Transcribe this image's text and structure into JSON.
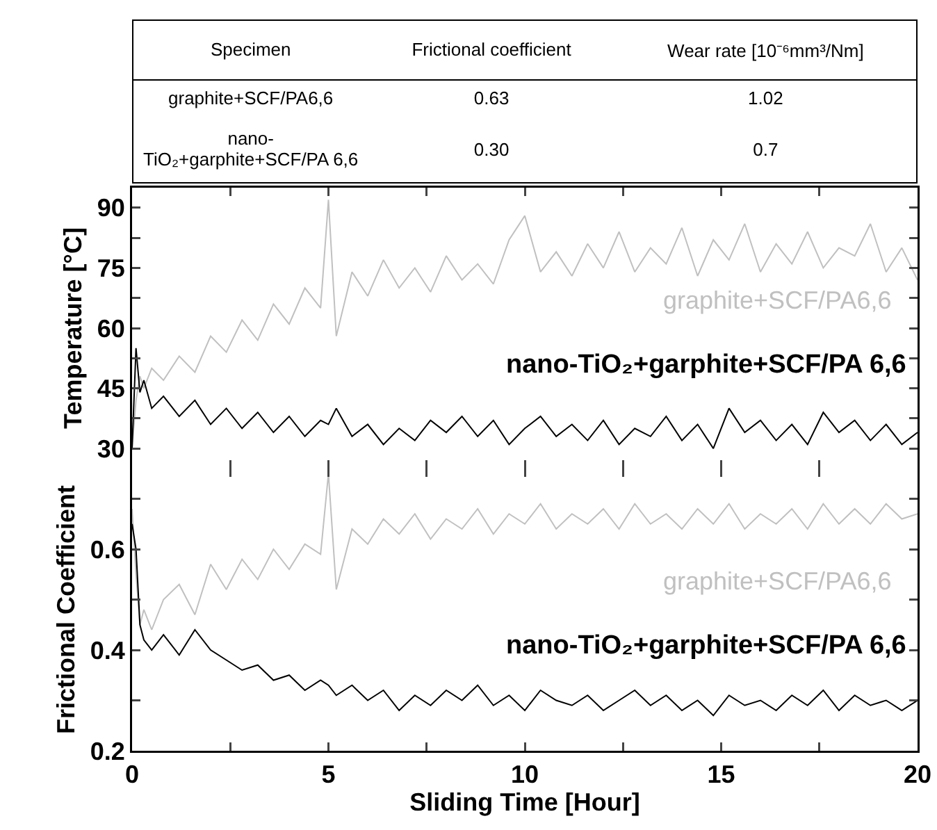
{
  "chart_data": [
    {
      "type": "other",
      "annotations": [
        "Specimen",
        "Frictional coefficient",
        "Wear rate [10⁻⁶mm³/Nm]",
        "graphite+SCF/PA6,6",
        "0.63",
        "1.02",
        "nano-TiO₂+garphite+SCF/PA 6,6",
        "0.30",
        "0.7"
      ]
    },
    {
      "type": "line",
      "ylabel": "Temperature [°C]",
      "legend": false,
      "tick_labels": "y",
      "xlim": [
        0,
        20
      ],
      "xticks": [
        {
          "value": 0,
          "label": null
        },
        {
          "value": 2.5,
          "label": null
        },
        {
          "value": 5,
          "label": null
        },
        {
          "value": 7.5,
          "label": null
        },
        {
          "value": 10,
          "label": null
        },
        {
          "value": 12.5,
          "label": null
        },
        {
          "value": 15,
          "label": null
        },
        {
          "value": 17.5,
          "label": null
        },
        {
          "value": 20,
          "label": null
        }
      ],
      "ylim": [
        25,
        95
      ],
      "yticks": [
        30,
        {
          "value": 37.5,
          "label": null
        },
        45,
        {
          "value": 52.5,
          "label": null
        },
        60,
        {
          "value": 67.5,
          "label": null
        },
        75,
        {
          "value": 82.5,
          "label": null
        },
        90
      ],
      "x": [
        0,
        0.1,
        0.2,
        0.3,
        0.5,
        0.8,
        1.2,
        1.6,
        2,
        2.4,
        2.8,
        3.2,
        3.6,
        4,
        4.4,
        4.8,
        5,
        5.2,
        5.6,
        6,
        6.4,
        6.8,
        7.2,
        7.6,
        8,
        8.4,
        8.8,
        9.2,
        9.6,
        10,
        10.4,
        10.8,
        11.2,
        11.6,
        12,
        12.4,
        12.8,
        13.2,
        13.6,
        14,
        14.4,
        14.8,
        15.2,
        15.6,
        16,
        16.4,
        16.8,
        17.2,
        17.6,
        18,
        18.4,
        18.8,
        19.2,
        19.6,
        20
      ],
      "series": [
        {
          "name": "graphite+SCF/PA6,6",
          "color": "#c0c0c0",
          "values": [
            30,
            42,
            48,
            45,
            50,
            47,
            53,
            49,
            58,
            54,
            62,
            57,
            66,
            61,
            70,
            65,
            92,
            58,
            74,
            68,
            77,
            70,
            75,
            69,
            78,
            72,
            76,
            71,
            82,
            88,
            74,
            79,
            73,
            81,
            75,
            84,
            74,
            80,
            76,
            85,
            73,
            82,
            77,
            86,
            74,
            81,
            76,
            84,
            75,
            80,
            78,
            86,
            74,
            80,
            72
          ]
        },
        {
          "name": "nano-TiO₂+garphite+SCF/PA 6,6",
          "color": "#000000",
          "values": [
            30,
            55,
            44,
            47,
            40,
            43,
            38,
            42,
            36,
            40,
            35,
            39,
            34,
            38,
            33,
            37,
            36,
            40,
            33,
            36,
            31,
            35,
            32,
            37,
            34,
            38,
            33,
            37,
            31,
            35,
            38,
            33,
            36,
            32,
            37,
            31,
            35,
            33,
            38,
            32,
            36,
            30,
            40,
            34,
            37,
            32,
            36,
            31,
            39,
            34,
            37,
            32,
            36,
            31,
            34
          ]
        }
      ]
    },
    {
      "type": "line",
      "ylabel": "Frictional Coefficient",
      "xlabel": "Sliding Time [Hour]",
      "legend": false,
      "xlim": [
        0,
        20
      ],
      "xticks": [
        0,
        {
          "value": 2.5,
          "label": null
        },
        5,
        {
          "value": 7.5,
          "label": null
        },
        10,
        {
          "value": 12.5,
          "label": null
        },
        15,
        {
          "value": 17.5,
          "label": null
        },
        20
      ],
      "ylim": [
        0.2,
        0.76
      ],
      "yticks": [
        0.2,
        {
          "value": 0.3,
          "label": null
        },
        0.4,
        {
          "value": 0.5,
          "label": null
        },
        0.6,
        {
          "value": 0.7,
          "label": null
        }
      ],
      "x": [
        0,
        0.1,
        0.2,
        0.3,
        0.5,
        0.8,
        1.2,
        1.6,
        2,
        2.4,
        2.8,
        3.2,
        3.6,
        4,
        4.4,
        4.8,
        5,
        5.2,
        5.6,
        6,
        6.4,
        6.8,
        7.2,
        7.6,
        8,
        8.4,
        8.8,
        9.2,
        9.6,
        10,
        10.4,
        10.8,
        11.2,
        11.6,
        12,
        12.4,
        12.8,
        13.2,
        13.6,
        14,
        14.4,
        14.8,
        15.2,
        15.6,
        16,
        16.4,
        16.8,
        17.2,
        17.6,
        18,
        18.4,
        18.8,
        19.2,
        19.6,
        20
      ],
      "series": [
        {
          "name": "graphite+SCF/PA6,6",
          "color": "#c0c0c0",
          "values": [
            0.68,
            0.55,
            0.45,
            0.48,
            0.44,
            0.5,
            0.53,
            0.47,
            0.57,
            0.52,
            0.58,
            0.54,
            0.6,
            0.56,
            0.61,
            0.59,
            0.75,
            0.52,
            0.64,
            0.61,
            0.66,
            0.63,
            0.67,
            0.62,
            0.66,
            0.64,
            0.68,
            0.63,
            0.67,
            0.65,
            0.69,
            0.64,
            0.67,
            0.65,
            0.68,
            0.64,
            0.69,
            0.65,
            0.67,
            0.64,
            0.68,
            0.65,
            0.69,
            0.64,
            0.67,
            0.65,
            0.68,
            0.64,
            0.69,
            0.65,
            0.68,
            0.65,
            0.69,
            0.66,
            0.67
          ]
        },
        {
          "name": "nano-TiO₂+garphite+SCF/PA 6,6",
          "color": "#000000",
          "values": [
            0.65,
            0.6,
            0.45,
            0.42,
            0.4,
            0.43,
            0.39,
            0.44,
            0.4,
            0.38,
            0.36,
            0.37,
            0.34,
            0.35,
            0.32,
            0.34,
            0.33,
            0.31,
            0.33,
            0.3,
            0.32,
            0.28,
            0.31,
            0.29,
            0.32,
            0.3,
            0.33,
            0.29,
            0.31,
            0.28,
            0.32,
            0.3,
            0.29,
            0.31,
            0.28,
            0.3,
            0.32,
            0.29,
            0.31,
            0.28,
            0.3,
            0.27,
            0.31,
            0.29,
            0.3,
            0.28,
            0.31,
            0.29,
            0.32,
            0.28,
            0.31,
            0.29,
            0.3,
            0.28,
            0.3
          ]
        }
      ]
    }
  ]
}
